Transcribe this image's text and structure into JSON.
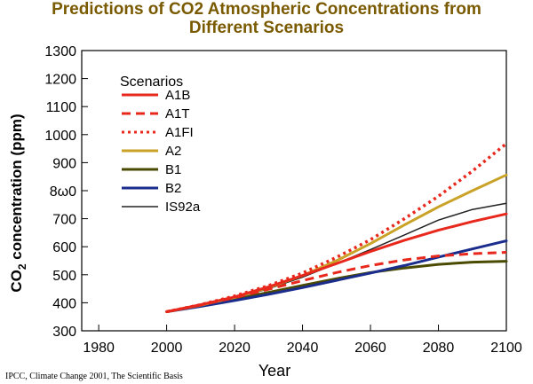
{
  "title_line1": "Predictions  of CO2 Atmospheric Concentrations from",
  "title_line2": "Different Scenarios",
  "credit": "IPCC, Climate Change 2001, The Scientific Basis",
  "chart_data": {
    "type": "line",
    "xlabel": "Year",
    "ylabel": "CO2 concentration (ppm)",
    "xlim": [
      1975,
      2100
    ],
    "ylim": [
      300,
      1300
    ],
    "xticks": [
      1980,
      2000,
      2020,
      2040,
      2060,
      2080,
      2100
    ],
    "yticks": [
      300,
      400,
      500,
      600,
      700,
      800,
      900,
      1000,
      1100,
      1200,
      1300
    ],
    "ytick_labels": [
      "300",
      "400",
      "500",
      "600",
      "700",
      "8ω0",
      "900",
      "1000",
      "1100",
      "1200",
      "1300"
    ],
    "legend_title": "Scenarios",
    "legend_position": "top-left",
    "grid": false,
    "x": [
      2000,
      2010,
      2020,
      2030,
      2040,
      2050,
      2060,
      2070,
      2080,
      2090,
      2100
    ],
    "series": [
      {
        "name": "A1B",
        "color": "#e8281c",
        "dash": "solid",
        "values": [
          368,
          393,
          421,
          457,
          497,
          540,
          583,
          623,
          659,
          690,
          717
        ]
      },
      {
        "name": "A1T",
        "color": "#e8281c",
        "dash": "dashed",
        "values": [
          368,
          392,
          418,
          448,
          479,
          508,
          533,
          553,
          567,
          575,
          580
        ]
      },
      {
        "name": "A1FI",
        "color": "#e8281c",
        "dash": "dotted",
        "values": [
          368,
          393,
          424,
          461,
          506,
          562,
          625,
          700,
          780,
          870,
          968
        ]
      },
      {
        "name": "A2",
        "color": "#c9a227",
        "dash": "solid",
        "values": [
          368,
          391,
          419,
          454,
          497,
          550,
          611,
          678,
          742,
          800,
          856
        ]
      },
      {
        "name": "B1",
        "color": "#4a4a00",
        "dash": "solid",
        "values": [
          368,
          389,
          412,
          437,
          462,
          486,
          508,
          524,
          537,
          545,
          548
        ]
      },
      {
        "name": "B2",
        "color": "#1b2d8c",
        "dash": "solid",
        "values": [
          368,
          387,
          408,
          430,
          454,
          480,
          506,
          533,
          563,
          592,
          621
        ]
      },
      {
        "name": "IS92a",
        "color": "#222222",
        "dash": "solid",
        "values": [
          368,
          390,
          417,
          450,
          491,
          540,
          590,
          642,
          695,
          733,
          755
        ]
      }
    ]
  }
}
